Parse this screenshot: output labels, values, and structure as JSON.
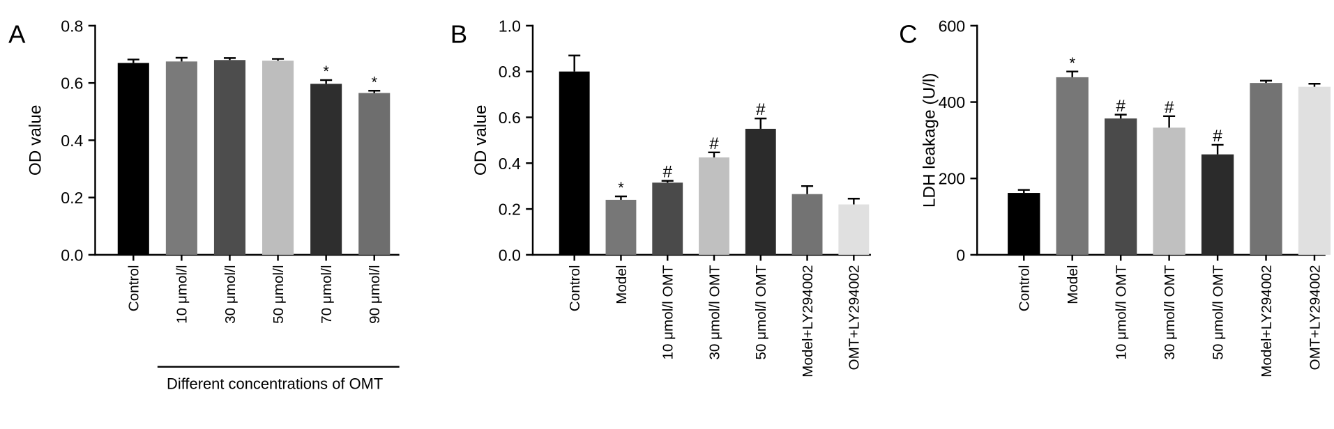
{
  "chart_data": [
    {
      "type": "bar",
      "panel_label": "A",
      "ylabel": "OD value",
      "categories": [
        "Control",
        "10 μmol/l",
        "30 μmol/l",
        "50 μmol/l",
        "70 μmol/l",
        "90 μmol/l"
      ],
      "values": [
        0.67,
        0.675,
        0.68,
        0.678,
        0.597,
        0.565
      ],
      "errors": [
        0.012,
        0.013,
        0.007,
        0.006,
        0.013,
        0.008
      ],
      "colors": [
        "#000000",
        "#7a7a7a",
        "#4d4d4d",
        "#bdbdbd",
        "#2e2e2e",
        "#6e6e6e"
      ],
      "annotations": [
        null,
        null,
        null,
        null,
        "*",
        "*"
      ],
      "group_label": "Different concentrations of OMT",
      "ylim": [
        0,
        0.8
      ],
      "yticks": [
        {
          "value": 0,
          "label": "0.0"
        },
        0.2,
        0.4,
        0.6,
        0.8
      ]
    },
    {
      "type": "bar",
      "panel_label": "B",
      "ylabel": "OD value",
      "categories": [
        "Control",
        "Model",
        "10 μmol/l OMT",
        "30 μmol/l OMT",
        "50 μmol/l OMT",
        "Model+LY294002",
        "OMT+LY294002"
      ],
      "values": [
        0.8,
        0.24,
        0.315,
        0.425,
        0.55,
        0.265,
        0.22
      ],
      "errors": [
        0.07,
        0.015,
        0.008,
        0.022,
        0.045,
        0.035,
        0.025
      ],
      "colors": [
        "#000000",
        "#777777",
        "#4a4a4a",
        "#c0c0c0",
        "#2b2b2b",
        "#737373",
        "#e0e0e0"
      ],
      "annotations": [
        null,
        "*",
        "#",
        "#",
        "#",
        null,
        null
      ],
      "ylim": [
        0,
        1
      ],
      "yticks": [
        {
          "value": 0,
          "label": "0.0"
        },
        0.2,
        0.4,
        0.6,
        0.8,
        {
          "value": 1,
          "label": "1.0"
        }
      ]
    },
    {
      "type": "bar",
      "panel_label": "C",
      "ylabel": "LDH leakage (U/l)",
      "categories": [
        "Control",
        "Model",
        "10 μmol/l OMT",
        "30 μmol/l OMT",
        "50 μmol/l OMT",
        "Model+LY294002",
        "OMT+LY294002"
      ],
      "values": [
        162,
        465,
        357,
        333,
        263,
        450,
        440
      ],
      "errors": [
        8,
        15,
        10,
        30,
        25,
        6,
        8
      ],
      "colors": [
        "#000000",
        "#777777",
        "#4a4a4a",
        "#c0c0c0",
        "#2b2b2b",
        "#737373",
        "#e0e0e0"
      ],
      "annotations": [
        null,
        "*",
        "#",
        "#",
        "#",
        null,
        null
      ],
      "ylim": [
        0,
        600
      ],
      "yticks": [
        0,
        200,
        400,
        600
      ]
    }
  ]
}
